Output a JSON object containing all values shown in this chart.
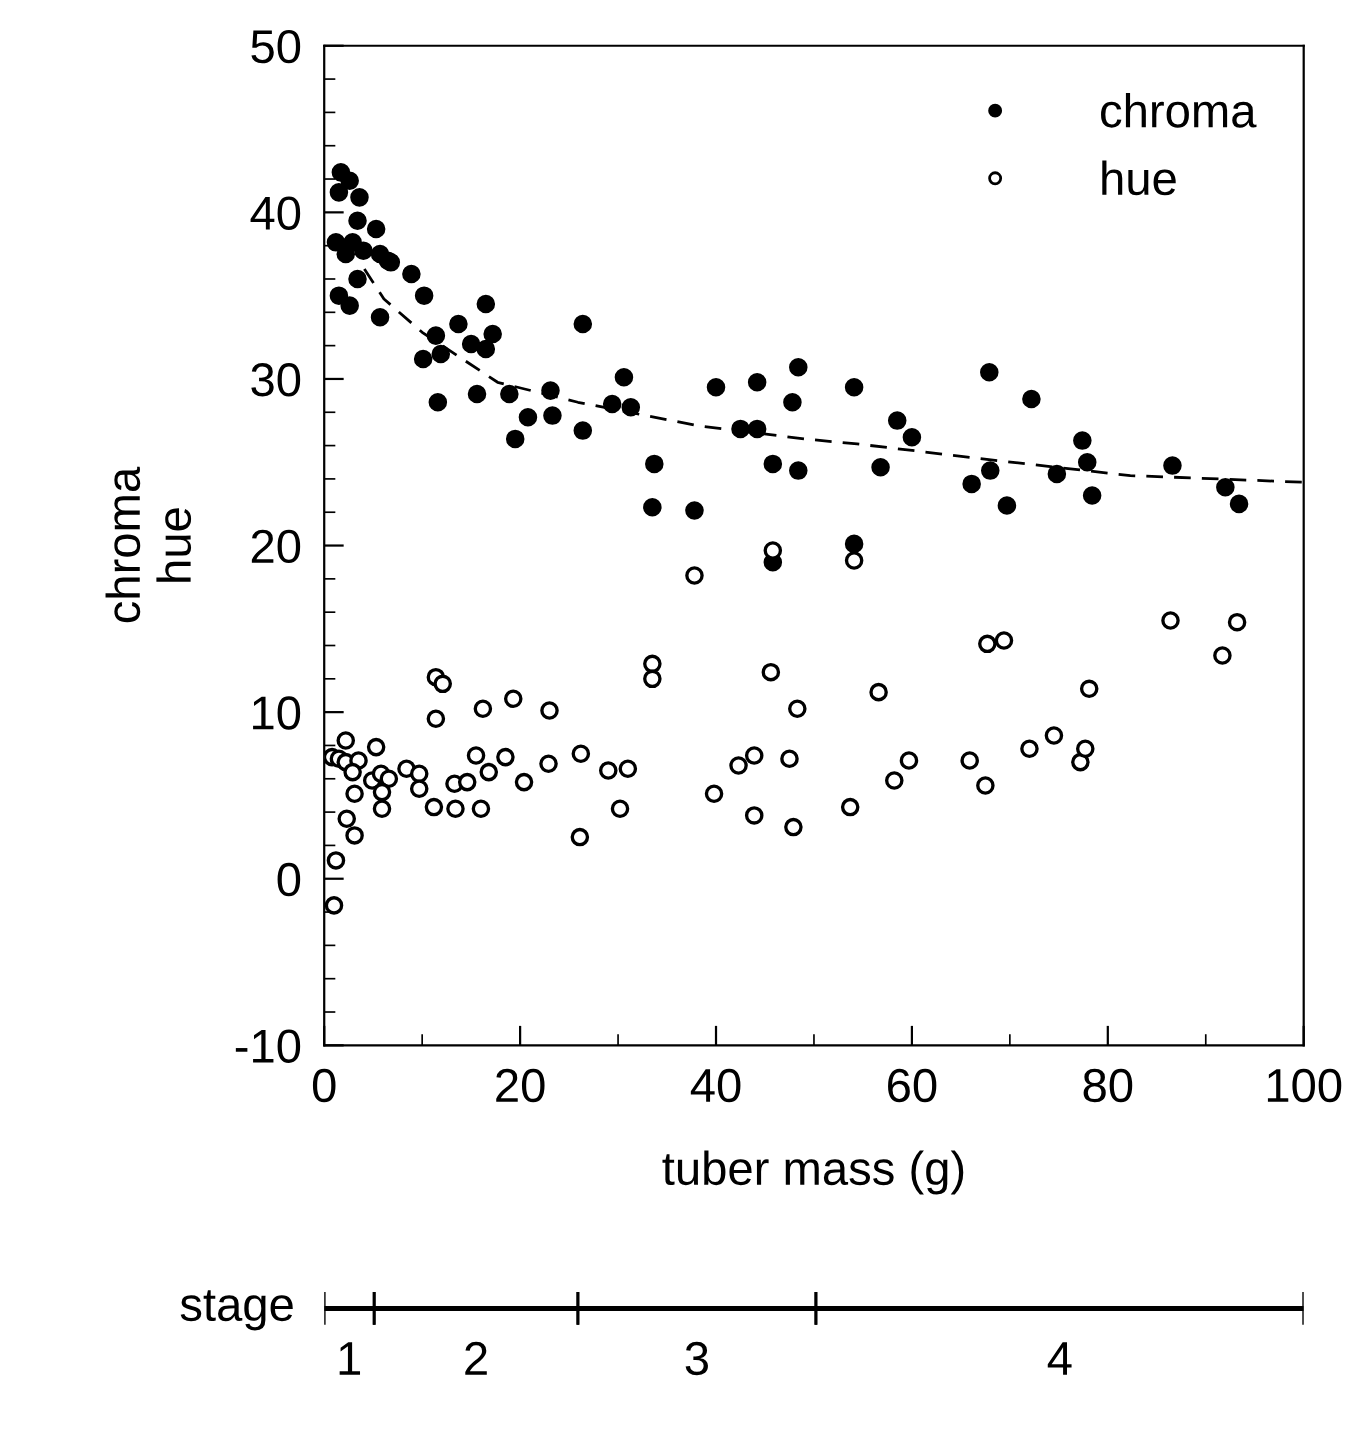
{
  "chart_data": [
    {
      "type": "scatter",
      "xlabel": "tuber mass (g)",
      "ylabel": "chroma\nhue",
      "xlim": [
        0,
        100
      ],
      "xticks": [
        0,
        20,
        40,
        60,
        80,
        100
      ],
      "ylim": [
        -10,
        50
      ],
      "yticks": [
        -10,
        0,
        10,
        20,
        30,
        40,
        50
      ],
      "legend": "top right",
      "grid": false,
      "marker": "circle",
      "series": [
        {
          "name": "chroma",
          "color": "#000000",
          "x": [
            1.7,
            2.6,
            1.5,
            3.6,
            3.4,
            5.3,
            1.2,
            2.2,
            2.9,
            4.0,
            5.7,
            6.5,
            6.8,
            8.9,
            3.4,
            1.5,
            2.6,
            5.7,
            10.2,
            16.5,
            13.7,
            11.4,
            17.2,
            15.0,
            11.9,
            16.5,
            10.1,
            11.6,
            15.6,
            18.9,
            20.8,
            23.1,
            23.3,
            19.5,
            26.4,
            26.4,
            29.4,
            30.6,
            31.3,
            33.7,
            33.5,
            37.8,
            40.0,
            42.5,
            44.2,
            44.2,
            45.8,
            45.8,
            48.4,
            47.8,
            48.4,
            54.1,
            54.1,
            56.8,
            58.5,
            60.0,
            66.1,
            67.9,
            68.0,
            69.7,
            72.2,
            74.8,
            77.4,
            77.9,
            78.4,
            86.6,
            92.0,
            93.4
          ],
          "values": [
            42.4,
            41.9,
            41.2,
            40.9,
            39.5,
            39.0,
            38.2,
            37.5,
            38.2,
            37.7,
            37.5,
            37.1,
            37.0,
            36.3,
            36.0,
            35.0,
            34.4,
            33.7,
            35.0,
            34.5,
            33.3,
            32.6,
            32.7,
            32.1,
            31.5,
            31.8,
            31.2,
            28.6,
            29.1,
            29.1,
            27.7,
            29.3,
            27.8,
            26.4,
            33.3,
            26.9,
            28.5,
            30.1,
            28.3,
            24.9,
            22.3,
            22.1,
            29.5,
            27.0,
            27.0,
            29.8,
            24.9,
            19.0,
            30.7,
            28.6,
            24.5,
            29.5,
            20.1,
            24.7,
            27.5,
            26.5,
            23.7,
            30.4,
            24.5,
            22.4,
            28.8,
            24.3,
            26.3,
            25.0,
            23.0,
            24.8,
            23.5,
            22.5
          ]
        },
        {
          "name": "hue",
          "color": "#ffffff",
          "x": [
            37.8,
            45.8,
            54.1,
            0.8,
            1.5,
            2.2,
            2.2,
            3.5,
            2.9,
            5.3,
            4.9,
            5.8,
            6.6,
            5.9,
            3.1,
            5.9,
            2.3,
            3.1,
            1.2,
            1.0,
            8.4,
            9.7,
            9.7,
            11.2,
            11.4,
            11.4,
            12.1,
            13.3,
            14.6,
            13.4,
            16.0,
            15.5,
            16.2,
            16.8,
            18.5,
            19.3,
            20.4,
            23.0,
            22.9,
            26.1,
            26.2,
            29.0,
            30.2,
            31.0,
            33.5,
            33.5,
            39.8,
            42.3,
            43.9,
            43.9,
            45.6,
            47.5,
            47.9,
            48.3,
            53.7,
            56.6,
            58.2,
            59.7,
            65.9,
            67.5,
            67.7,
            69.4,
            72.0,
            74.5,
            77.2,
            77.7,
            78.1,
            86.4,
            91.7,
            93.2
          ],
          "values": [
            18.2,
            19.7,
            19.1,
            7.3,
            7.2,
            8.3,
            7.0,
            7.1,
            6.4,
            7.9,
            5.9,
            6.3,
            6.0,
            5.2,
            5.1,
            4.2,
            3.6,
            2.6,
            1.1,
            -1.6,
            6.6,
            6.3,
            5.4,
            4.3,
            9.6,
            12.1,
            11.7,
            5.7,
            5.8,
            4.2,
            4.2,
            7.4,
            10.2,
            6.4,
            7.3,
            10.8,
            5.8,
            10.1,
            6.9,
            2.5,
            7.5,
            6.5,
            4.2,
            6.6,
            12.9,
            12.0,
            5.1,
            6.8,
            7.4,
            3.8,
            12.4,
            7.2,
            3.1,
            10.2,
            4.3,
            11.2,
            5.9,
            7.1,
            7.1,
            5.6,
            14.1,
            14.3,
            7.8,
            8.6,
            7.0,
            7.8,
            11.4,
            15.5,
            13.4,
            15.4
          ]
        },
        {
          "type": "line",
          "color": "#000000",
          "line_style": "dashed",
          "marker": "none",
          "x": [
            4.1,
            6.1,
            10.0,
            17.7,
            25.9,
            38.1,
            49.0,
            54.4,
            68.7,
            82.3,
            100
          ],
          "values": [
            36.6,
            34.8,
            32.8,
            29.8,
            28.6,
            27.2,
            26.4,
            26.1,
            25.1,
            24.2,
            23.8
          ]
        }
      ]
    },
    {
      "type": "bar",
      "orientation": "horizontal",
      "stacked": true,
      "ylabel": "stage",
      "categories": [
        null
      ],
      "xlim": [
        0,
        100
      ],
      "tick_labels": false,
      "series": [
        {
          "name": "1",
          "color": "#000000",
          "values": [
            5.1
          ]
        },
        {
          "name": "2",
          "color": "#000000",
          "values": [
            20.8
          ]
        },
        {
          "name": "3",
          "color": "#000000",
          "values": [
            24.3
          ]
        },
        {
          "name": "4",
          "color": "#000000",
          "values": [
            49.8
          ]
        }
      ]
    }
  ]
}
